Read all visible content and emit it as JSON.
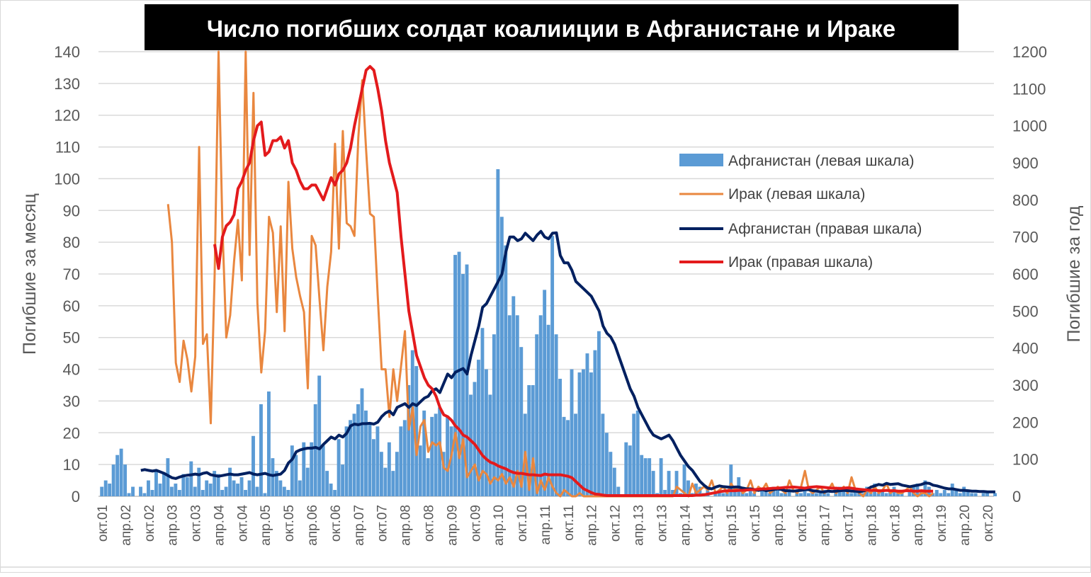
{
  "chart_data": {
    "type": "bar+line",
    "title": "Число погибших солдат коалииции в Афганистане и Ираке",
    "ylabel_left": "Погибшие за месяц",
    "ylabel_right": "Погибшие за год",
    "ylim_left": [
      0,
      140
    ],
    "ylim_right": [
      0,
      1200
    ],
    "yticks_left": [
      "0",
      "10",
      "20",
      "30",
      "40",
      "50",
      "60",
      "70",
      "80",
      "90",
      "100",
      "110",
      "120",
      "130",
      "140"
    ],
    "yticks_right": [
      "0",
      "100",
      "200",
      "300",
      "400",
      "500",
      "600",
      "700",
      "800",
      "900",
      "1000",
      "1100",
      "1200"
    ],
    "x_start": "2001-10",
    "x_end": "2020-12",
    "xticks": [
      "окт.01",
      "апр.02",
      "окт.02",
      "апр.03",
      "окт.03",
      "апр.04",
      "окт.04",
      "апр.05",
      "окт.05",
      "апр.06",
      "окт.06",
      "апр.07",
      "окт.07",
      "апр.08",
      "окт.08",
      "апр.09",
      "окт.09",
      "апр.10",
      "окт.10",
      "апр.11",
      "окт.11",
      "апр.12",
      "окт.12",
      "апр.13",
      "окт.13",
      "апр.14",
      "окт.14",
      "апр.15",
      "окт.15",
      "апр.16",
      "окт.16",
      "апр.17",
      "окт.17",
      "апр.18",
      "окт.18",
      "апр.19",
      "окт.19",
      "апр.20",
      "окт.20"
    ],
    "grid": true,
    "legend_position": "right",
    "series": [
      {
        "name": "Афганистан (левая шкала)",
        "type": "bar",
        "axis": "left",
        "color": "#5b9bd5",
        "start": "2001-10",
        "values": [
          3,
          5,
          4,
          10,
          13,
          15,
          10,
          1,
          3,
          0,
          3,
          1,
          5,
          2,
          8,
          4,
          7,
          12,
          3,
          4,
          2,
          7,
          6,
          11,
          3,
          9,
          2,
          5,
          4,
          8,
          7,
          2,
          3,
          9,
          5,
          4,
          6,
          2,
          5,
          19,
          3,
          29,
          1,
          33,
          12,
          8,
          5,
          3,
          2,
          16,
          13,
          5,
          17,
          9,
          17,
          29,
          38,
          16,
          8,
          4,
          2,
          18,
          10,
          22,
          24,
          26,
          29,
          34,
          27,
          23,
          18,
          22,
          14,
          9,
          17,
          8,
          14,
          22,
          24,
          35,
          46,
          41,
          16,
          27,
          12,
          25,
          26,
          28,
          14,
          25,
          22,
          76,
          77,
          70,
          73,
          32,
          36,
          43,
          53,
          40,
          32,
          51,
          103,
          88,
          79,
          57,
          63,
          57,
          47,
          26,
          35,
          35,
          51,
          57,
          65,
          54,
          82,
          51,
          37,
          25,
          24,
          40,
          26,
          39,
          40,
          45,
          39,
          46,
          52,
          26,
          20,
          14,
          9,
          3,
          0,
          17,
          16,
          26,
          27,
          13,
          12,
          12,
          8,
          1,
          12,
          2,
          8,
          2,
          8,
          1,
          10,
          5,
          1,
          4,
          3,
          1,
          2,
          0,
          1,
          2,
          1,
          2,
          10,
          2,
          6,
          3,
          1,
          2,
          1,
          0,
          2,
          2,
          1,
          3,
          2,
          1,
          1,
          2,
          0,
          2,
          1,
          3,
          1,
          2,
          1,
          1,
          2,
          1,
          0,
          2,
          3,
          2,
          1,
          1,
          2,
          1,
          1,
          3,
          1,
          4,
          1,
          2,
          1,
          2,
          3,
          1,
          1,
          0,
          2,
          3,
          4,
          2,
          5,
          3,
          1,
          2,
          1,
          2,
          1,
          4,
          2,
          1,
          3,
          2,
          1,
          1,
          0,
          1,
          1,
          0,
          1
        ]
      },
      {
        "name": "Ирак (левая шкала)",
        "type": "line",
        "axis": "left",
        "color": "#e9873f",
        "start": "2003-03",
        "values": [
          92,
          80,
          42,
          36,
          49,
          43,
          33,
          44,
          110,
          48,
          51,
          23,
          70,
          140,
          85,
          50,
          57,
          74,
          87,
          68,
          140,
          76,
          127,
          61,
          39,
          52,
          88,
          83,
          58,
          85,
          52,
          99,
          78,
          69,
          63,
          58,
          34,
          82,
          79,
          62,
          46,
          66,
          77,
          111,
          78,
          115,
          86,
          85,
          82,
          113,
          131,
          109,
          89,
          88,
          63,
          40,
          40,
          25,
          40,
          30,
          41,
          52,
          21,
          28,
          13,
          22,
          24,
          14,
          17,
          16,
          17,
          9,
          8,
          13,
          20,
          12,
          18,
          6,
          8,
          10,
          5,
          8,
          7,
          4,
          6,
          5,
          7,
          4,
          6,
          3,
          8,
          3,
          14,
          2,
          12,
          1,
          5,
          2,
          6,
          3,
          1,
          0,
          2,
          1,
          0,
          0,
          1,
          0,
          0,
          0,
          0,
          0,
          0,
          0,
          0,
          0,
          0,
          0,
          0,
          0,
          0,
          0,
          0,
          0,
          0,
          0,
          0,
          0,
          0,
          0,
          0,
          3,
          2,
          1,
          0,
          4,
          1,
          2,
          3,
          2,
          5,
          1,
          2,
          3,
          1,
          4,
          2,
          3,
          1,
          2,
          5,
          1,
          3,
          2,
          4,
          1,
          2,
          3,
          2,
          1,
          5,
          2,
          1,
          3,
          8,
          2,
          1,
          2,
          3,
          1,
          2,
          4,
          1,
          2,
          3,
          1,
          6,
          2,
          1,
          0,
          2,
          1,
          3,
          1,
          2,
          4,
          1,
          2,
          1,
          1,
          2,
          3,
          1,
          0,
          1,
          1,
          0,
          1
        ]
      },
      {
        "name": "Афганистан (правая шкала)",
        "type": "line",
        "axis": "right",
        "color": "#002060",
        "start": "2002-08",
        "values": [
          70,
          72,
          70,
          68,
          70,
          66,
          62,
          56,
          50,
          48,
          52,
          55,
          57,
          58,
          60,
          58,
          62,
          64,
          58,
          56,
          54,
          56,
          58,
          60,
          58,
          58,
          60,
          62,
          64,
          60,
          58,
          60,
          62,
          58,
          56,
          58,
          60,
          70,
          90,
          100,
          120,
          125,
          128,
          130,
          130,
          132,
          128,
          140,
          150,
          160,
          155,
          165,
          160,
          170,
          190,
          195,
          193,
          196,
          196,
          197,
          195,
          200,
          215,
          225,
          230,
          220,
          240,
          245,
          250,
          240,
          250,
          245,
          255,
          265,
          270,
          285,
          290,
          280,
          305,
          330,
          320,
          335,
          340,
          345,
          330,
          380,
          420,
          460,
          510,
          520,
          540,
          560,
          580,
          600,
          660,
          700,
          700,
          690,
          695,
          710,
          700,
          690,
          705,
          715,
          700,
          695,
          710,
          711,
          650,
          630,
          630,
          610,
          580,
          570,
          560,
          550,
          540,
          520,
          500,
          460,
          440,
          430,
          410,
          380,
          350,
          320,
          290,
          270,
          240,
          220,
          200,
          180,
          165,
          160,
          155,
          160,
          165,
          150,
          130,
          110,
          95,
          80,
          70,
          55,
          40,
          30,
          22,
          20,
          25,
          28,
          26,
          25,
          24,
          25,
          25,
          22,
          20,
          20,
          18,
          16,
          18,
          15,
          17,
          18,
          20,
          18,
          15,
          15,
          14,
          15,
          16,
          18,
          18,
          15,
          14,
          12,
          12,
          14,
          13,
          14,
          15,
          16,
          15,
          14,
          14,
          12,
          14,
          18,
          25,
          28,
          32,
          30,
          35,
          32,
          33,
          34,
          30,
          28,
          26,
          28,
          30,
          32,
          36,
          35,
          30,
          28,
          25,
          22,
          20,
          20,
          18,
          16,
          16,
          15,
          14,
          14,
          13,
          13,
          12,
          12,
          12
        ]
      },
      {
        "name": "Ирак (правая шкала)",
        "type": "line",
        "axis": "right",
        "color": "#e31a1c",
        "start": "2004-03",
        "values": [
          680,
          615,
          700,
          730,
          740,
          760,
          830,
          850,
          880,
          900,
          960,
          1000,
          1010,
          920,
          930,
          960,
          960,
          970,
          940,
          960,
          900,
          880,
          850,
          830,
          830,
          840,
          840,
          820,
          800,
          830,
          860,
          840,
          870,
          880,
          900,
          940,
          1000,
          1050,
          1100,
          1150,
          1160,
          1150,
          1100,
          1040,
          960,
          900,
          860,
          820,
          700,
          600,
          500,
          440,
          380,
          350,
          320,
          300,
          290,
          270,
          240,
          220,
          215,
          205,
          190,
          180,
          165,
          160,
          150,
          140,
          125,
          110,
          100,
          92,
          88,
          82,
          78,
          74,
          68,
          64,
          62,
          62,
          60,
          58,
          58,
          57,
          56,
          60,
          58,
          58,
          58,
          58,
          56,
          54,
          50,
          40,
          30,
          20,
          15,
          10,
          6,
          5,
          3,
          2,
          2,
          2,
          2,
          2,
          2,
          2,
          2,
          2,
          2,
          2,
          2,
          2,
          2,
          2,
          2,
          2,
          2,
          2,
          2,
          2,
          2,
          2,
          3,
          3,
          4,
          6,
          8,
          10,
          12,
          14,
          15,
          15,
          15,
          16,
          16,
          17,
          18,
          18,
          19,
          20,
          20,
          21,
          22,
          22,
          23,
          24,
          24,
          25,
          24,
          23,
          22,
          24,
          25,
          26,
          25,
          24,
          23,
          22,
          22,
          21,
          22,
          23,
          22,
          20,
          19,
          18,
          17,
          16,
          16,
          15,
          15,
          16,
          15,
          15,
          14,
          14,
          15,
          15,
          14,
          14,
          15,
          14,
          14,
          14
        ]
      }
    ]
  }
}
